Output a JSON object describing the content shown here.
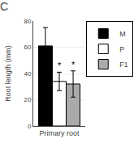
{
  "chart_data": {
    "type": "bar",
    "title": "C",
    "ylabel": "Root length (mm)",
    "categories": [
      "Primary root"
    ],
    "series": [
      {
        "name": "M",
        "color": "#000000",
        "values": [
          61
        ],
        "error": [
          14
        ]
      },
      {
        "name": "P",
        "color": "#ffffff",
        "values": [
          34
        ],
        "error": [
          7
        ]
      },
      {
        "name": "F1",
        "color": "#aaaaaa",
        "values": [
          32
        ],
        "error": [
          10
        ]
      }
    ],
    "annotations": [
      {
        "text": "*",
        "series": "P",
        "category": "Primary root"
      },
      {
        "text": "*",
        "series": "F1",
        "category": "Primary root"
      }
    ],
    "ylim": [
      0,
      80
    ],
    "yticks": [
      0,
      20,
      40,
      60,
      80
    ],
    "grid": true,
    "legend": "upper right"
  }
}
